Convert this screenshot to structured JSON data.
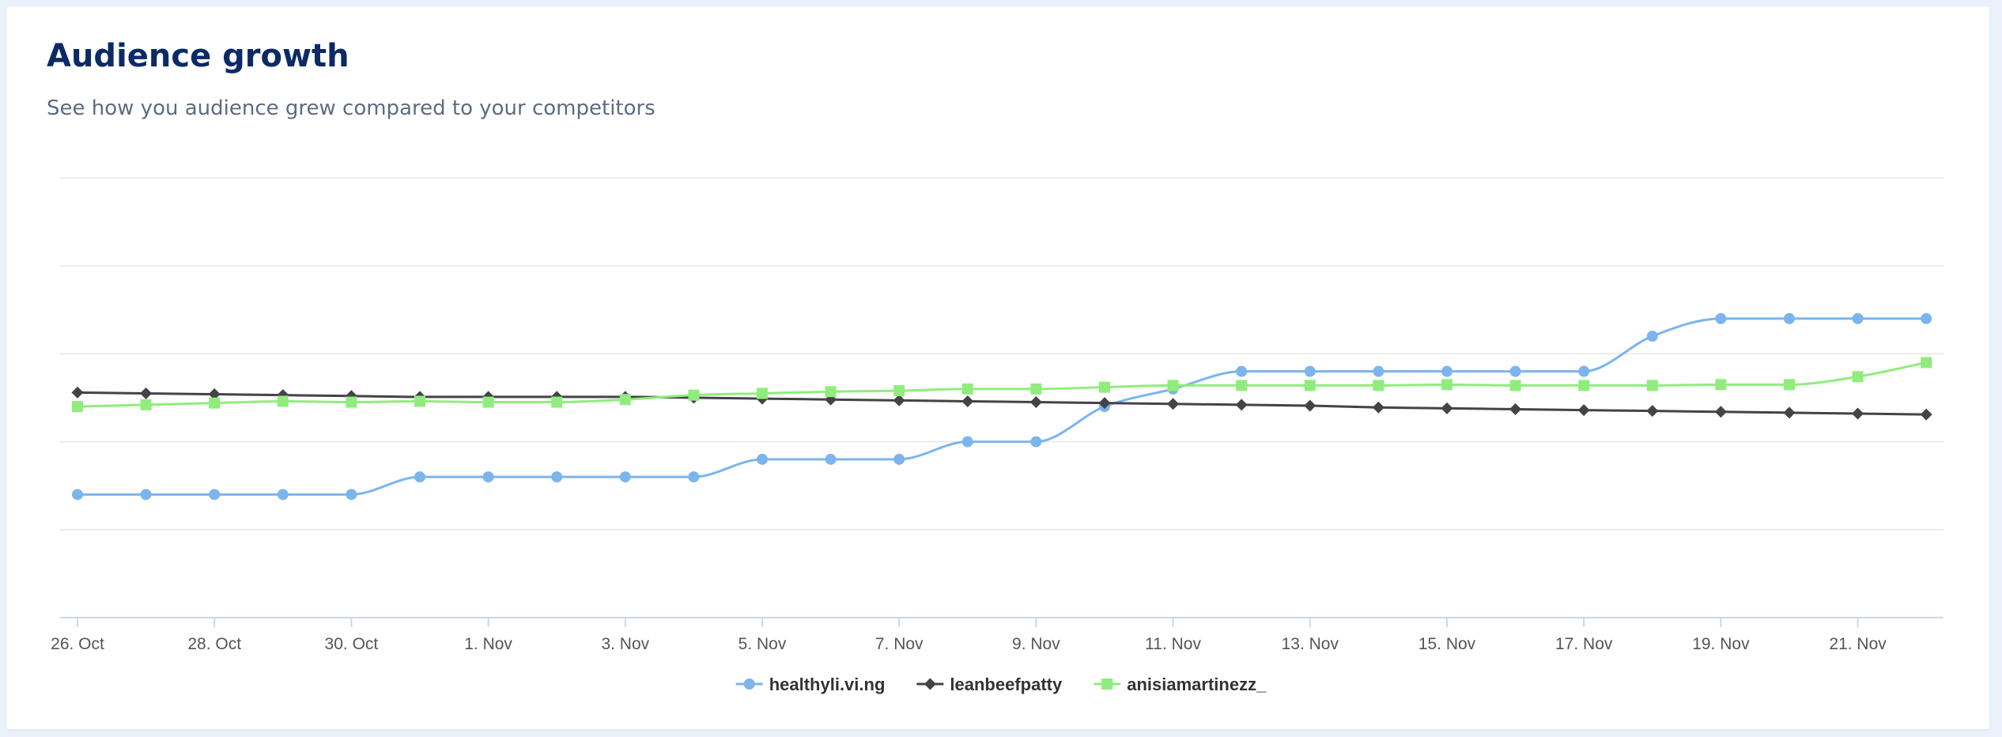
{
  "card": {
    "title": "Audience growth",
    "subtitle": "See how you audience grew compared to your competitors"
  },
  "colors": {
    "background": "#eaf1fb",
    "title": "#0b2a66",
    "grid": "#e6e6e6",
    "axis": "#ccd6eb"
  },
  "chart_data": {
    "type": "line",
    "title": "",
    "xlabel": "",
    "ylabel": "",
    "x": [
      "26. Oct",
      "27. Oct",
      "28. Oct",
      "29. Oct",
      "30. Oct",
      "31. Oct",
      "1. Nov",
      "2. Nov",
      "3. Nov",
      "4. Nov",
      "5. Nov",
      "6. Nov",
      "7. Nov",
      "8. Nov",
      "9. Nov",
      "10. Nov",
      "11. Nov",
      "12. Nov",
      "13. Nov",
      "14. Nov",
      "15. Nov",
      "16. Nov",
      "17. Nov",
      "18. Nov",
      "19. Nov",
      "20. Nov",
      "21. Nov",
      "22. Nov"
    ],
    "x_tick_labels": [
      "26. Oct",
      "28. Oct",
      "30. Oct",
      "1. Nov",
      "3. Nov",
      "5. Nov",
      "7. Nov",
      "9. Nov",
      "11. Nov",
      "13. Nov",
      "15. Nov",
      "17. Nov",
      "19. Nov",
      "21. Nov"
    ],
    "y_axis_labels_visible": false,
    "ylim": [
      0,
      5
    ],
    "grid": true,
    "smooth": true,
    "legend": "bottom-center",
    "series": [
      {
        "name": "healthyli.vi.ng",
        "color": "#7cb5ec",
        "marker": "circle",
        "values": [
          1.4,
          1.4,
          1.4,
          1.4,
          1.4,
          1.6,
          1.6,
          1.6,
          1.6,
          1.6,
          1.8,
          1.8,
          1.8,
          2.0,
          2.0,
          2.4,
          2.6,
          2.8,
          2.8,
          2.8,
          2.8,
          2.8,
          2.8,
          3.2,
          3.4,
          3.4,
          3.4,
          3.4
        ]
      },
      {
        "name": "leanbeefpatty",
        "color": "#434348",
        "marker": "diamond",
        "values": [
          2.56,
          2.55,
          2.54,
          2.53,
          2.52,
          2.51,
          2.51,
          2.51,
          2.51,
          2.5,
          2.49,
          2.48,
          2.47,
          2.46,
          2.45,
          2.44,
          2.43,
          2.42,
          2.41,
          2.39,
          2.38,
          2.37,
          2.36,
          2.35,
          2.34,
          2.33,
          2.32,
          2.31
        ]
      },
      {
        "name": "anisiamartinezz_",
        "color": "#90ed7d",
        "marker": "square",
        "values": [
          2.4,
          2.42,
          2.44,
          2.46,
          2.45,
          2.46,
          2.45,
          2.45,
          2.48,
          2.53,
          2.55,
          2.57,
          2.58,
          2.6,
          2.6,
          2.62,
          2.64,
          2.64,
          2.64,
          2.64,
          2.65,
          2.64,
          2.64,
          2.64,
          2.65,
          2.65,
          2.74,
          2.9
        ]
      }
    ]
  }
}
